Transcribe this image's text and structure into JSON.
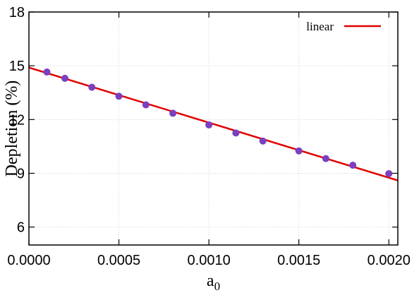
{
  "chart_data": {
    "type": "scatter",
    "title": "",
    "xlabel": "a",
    "xlabel_subscript": "0",
    "ylabel": "Depletion (%)",
    "xlim": [
      0.0,
      0.00205
    ],
    "ylim": [
      5,
      18
    ],
    "xticks": [
      "0.0000",
      "0.0005",
      "0.0010",
      "0.0015",
      "0.0020"
    ],
    "xtick_values": [
      0.0,
      0.0005,
      0.001,
      0.0015,
      0.002
    ],
    "yticks": [
      "6",
      "9",
      "12",
      "15",
      "18"
    ],
    "ytick_values": [
      6,
      9,
      12,
      15,
      18
    ],
    "grid": true,
    "legend_position": "top-right",
    "series": [
      {
        "kind": "points",
        "color": "#7b3fbf",
        "x": [
          0.0001,
          0.0002,
          0.00035,
          0.0005,
          0.00065,
          0.0008,
          0.001,
          0.00115,
          0.0013,
          0.0015,
          0.00165,
          0.0018,
          0.002
        ],
        "y": [
          14.65,
          14.3,
          13.8,
          13.3,
          12.82,
          12.35,
          11.7,
          11.25,
          10.8,
          10.25,
          9.82,
          9.45,
          8.98
        ]
      },
      {
        "kind": "line",
        "name": "linear",
        "color": "#e00000",
        "x": [
          0.0,
          0.00205
        ],
        "y": [
          14.9,
          8.6
        ]
      }
    ]
  }
}
